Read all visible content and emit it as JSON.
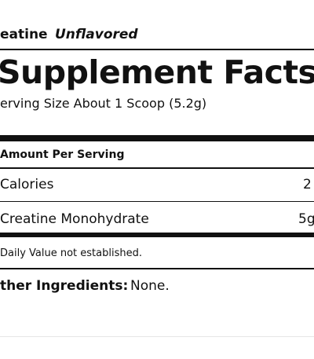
{
  "header": {
    "product": "eatine",
    "variant": "Unflavored"
  },
  "title": "Supplement Facts",
  "serving_size": "erving Size About 1 Scoop (5.2g)",
  "table": {
    "header": "Amount Per Serving",
    "rows": [
      [
        "Calories",
        "2"
      ],
      [
        "Creatine Monohydrate",
        "5g"
      ]
    ]
  },
  "footnote": "Daily Value not established.",
  "other_ingredients": {
    "label": "ther Ingredients:",
    "value": "None."
  }
}
